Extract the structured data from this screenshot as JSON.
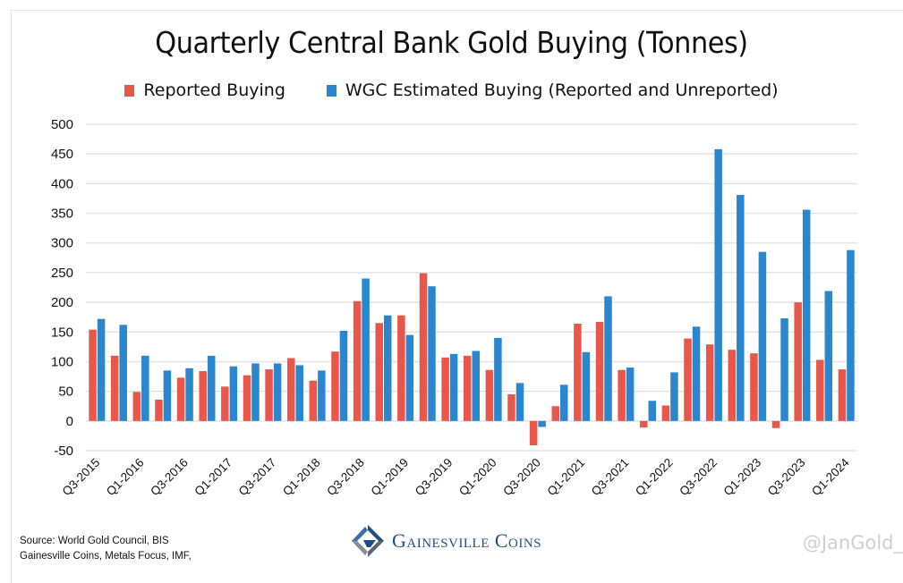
{
  "chart_data": {
    "type": "bar",
    "title": "Quarterly Central Bank Gold Buying (Tonnes)",
    "xlabel": "",
    "ylabel": "",
    "ylim": [
      -50,
      500
    ],
    "yticks": [
      -50,
      0,
      50,
      100,
      150,
      200,
      250,
      300,
      350,
      400,
      450,
      500
    ],
    "grid": true,
    "legend_placement": "top-center",
    "categories": [
      "Q3-2015",
      "Q4-2015",
      "Q1-2016",
      "Q2-2016",
      "Q3-2016",
      "Q4-2016",
      "Q1-2017",
      "Q2-2017",
      "Q3-2017",
      "Q4-2017",
      "Q1-2018",
      "Q2-2018",
      "Q3-2018",
      "Q4-2018",
      "Q1-2019",
      "Q2-2019",
      "Q3-2019",
      "Q4-2019",
      "Q1-2020",
      "Q2-2020",
      "Q3-2020",
      "Q4-2020",
      "Q1-2021",
      "Q2-2021",
      "Q3-2021",
      "Q4-2021",
      "Q1-2022",
      "Q2-2022",
      "Q3-2022",
      "Q4-2022",
      "Q1-2023",
      "Q2-2023",
      "Q3-2023",
      "Q4-2023",
      "Q1-2024"
    ],
    "tick_labels": [
      "Q3-2015",
      "Q1-2016",
      "Q3-2016",
      "Q1-2017",
      "Q3-2017",
      "Q1-2018",
      "Q3-2018",
      "Q1-2019",
      "Q3-2019",
      "Q1-2020",
      "Q3-2020",
      "Q1-2021",
      "Q3-2021",
      "Q1-2022",
      "Q3-2022",
      "Q1-2023",
      "Q3-2023",
      "Q1-2024"
    ],
    "series": [
      {
        "name": "Reported Buying",
        "color": "#e8574a",
        "values": [
          154,
          110,
          49,
          36,
          73,
          84,
          58,
          77,
          87,
          106,
          68,
          117,
          202,
          165,
          178,
          249,
          107,
          110,
          86,
          45,
          -41,
          25,
          164,
          167,
          86,
          -11,
          26,
          139,
          129,
          120,
          114,
          -12,
          200,
          103,
          87
        ]
      },
      {
        "name": "WGC Estimated Buying (Reported and Unreported)",
        "color": "#2a87cf",
        "values": [
          172,
          162,
          110,
          85,
          89,
          110,
          92,
          97,
          97,
          94,
          85,
          152,
          240,
          178,
          145,
          227,
          113,
          118,
          140,
          64,
          -10,
          61,
          116,
          210,
          90,
          34,
          82,
          159,
          458,
          381,
          285,
          173,
          356,
          219,
          288
        ]
      }
    ]
  },
  "footer": {
    "source_line1": "Source: World Gold Council, BIS",
    "source_line2": "Gainesville Coins, Metals Focus, IMF,",
    "brand_name": "Gainesville Coins",
    "brand_icon": "gainesville-logo-icon",
    "watermark": "@JanGold_"
  }
}
